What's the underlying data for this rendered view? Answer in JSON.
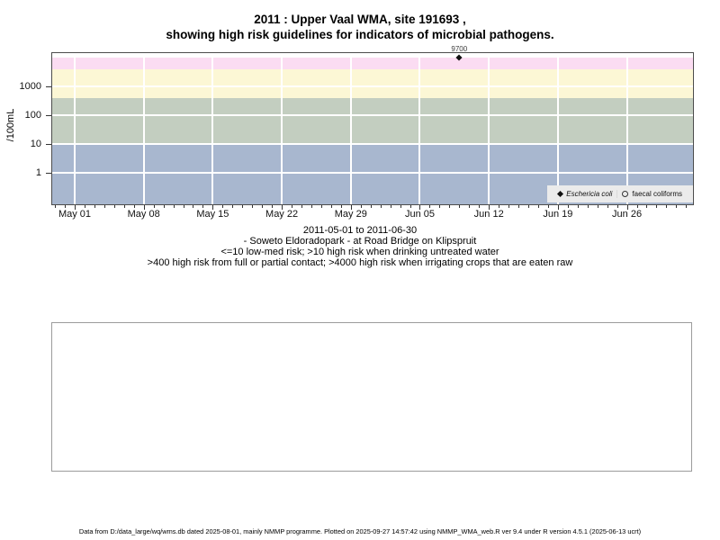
{
  "title": {
    "line1": "2011 : Upper Vaal WMA, site 191693 ,",
    "line2": "showing high risk guidelines for indicators of microbial pathogens."
  },
  "y_axis": {
    "label": "/100mL",
    "tick_labels": [
      "1000",
      "100",
      "10",
      "1"
    ],
    "tick_values": [
      1000,
      100,
      10,
      1
    ]
  },
  "x_axis": {
    "week_labels": [
      "May 01",
      "May 08",
      "May 15",
      "May 22",
      "May 29",
      "Jun 05",
      "Jun 12",
      "Jun 19",
      "Jun 26"
    ]
  },
  "legend": {
    "items": [
      {
        "icon": "filled-diamond-icon",
        "label": "Eschericia coli"
      },
      {
        "icon": "open-circle-icon",
        "label": "faecal coliforms"
      }
    ]
  },
  "caption": {
    "lines": [
      "2011-05-01 to 2011-06-30",
      "- Soweto Eldoradopark - at Road Bridge on Klipspruit",
      "<=10 low-med risk; >10 high risk when drinking untreated water",
      ">400 high risk from full or partial contact; >4000 high risk when irrigating crops that are eaten raw"
    ]
  },
  "footer": {
    "text": "Data from D:/data_large/wq/wms.db dated 2025-08-01, mainly NMMP programme. Plotted on 2025-09-27 14:57:42 using NMMP_WMA_web.R ver 9.4 under R version 4.5.1 (2025-06-13 ucrt)"
  },
  "colors": {
    "grid": "#ffffff",
    "frame": "#4d4d4d",
    "legend_bg": "#ebebeb",
    "marker": "#111111"
  },
  "chart_data": {
    "type": "scatter",
    "title": "2011 : Upper Vaal WMA, site 191693 , showing high risk guidelines for indicators of microbial pathogens.",
    "ylabel": "/100mL",
    "y_scale": "log10",
    "y_labeled_ticks": [
      1,
      10,
      100,
      1000
    ],
    "gridlines_y": [
      1,
      10,
      100,
      1000
    ],
    "grid": true,
    "x_start": "2011-05-01",
    "x_end": "2011-06-30",
    "x_week_tick_days": [
      0,
      7,
      14,
      21,
      28,
      35,
      42,
      49,
      56
    ],
    "x_minor_ticks": "daily",
    "x_minor_tick_day_range": [
      -2,
      62
    ],
    "series": [
      {
        "name": "Eschericia coli",
        "marker": "filled-diamond",
        "points": [
          {
            "date": "2011-06-09",
            "value": 9700,
            "label": "9700"
          }
        ]
      },
      {
        "name": "faecal coliforms",
        "marker": "open-circle",
        "points": []
      }
    ],
    "risk_bands": [
      {
        "min": 0.07,
        "max": 10,
        "color": "#a8b7cf",
        "label": "<=10 low-med risk"
      },
      {
        "min": 10,
        "max": 400,
        "color": "#c3cec0",
        "label": ">10 high risk when drinking untreated water"
      },
      {
        "min": 400,
        "max": 4000,
        "color": "#fcf7d5",
        "label": ">400 high risk from full or partial contact"
      },
      {
        "min": 4000,
        "max": 10000,
        "color": "#fbdcf2",
        "label": ">4000 high risk when irrigating crops that are eaten raw"
      }
    ],
    "legend_position": "bottom-right-inside"
  }
}
